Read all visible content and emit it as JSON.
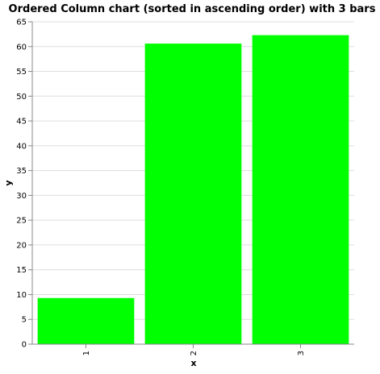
{
  "chart_data": {
    "type": "bar",
    "title": "Ordered Column chart (sorted in ascending order) with 3 bars",
    "xlabel": "x",
    "ylabel": "y",
    "categories": [
      "1",
      "2",
      "3"
    ],
    "values": [
      9.3,
      60.6,
      62.3
    ],
    "ylim": [
      0,
      65
    ],
    "yticks": [
      0,
      5,
      10,
      15,
      20,
      25,
      30,
      35,
      40,
      45,
      50,
      55,
      60,
      65
    ],
    "bar_color": "#00ff00",
    "grid": true,
    "legend": "none"
  }
}
